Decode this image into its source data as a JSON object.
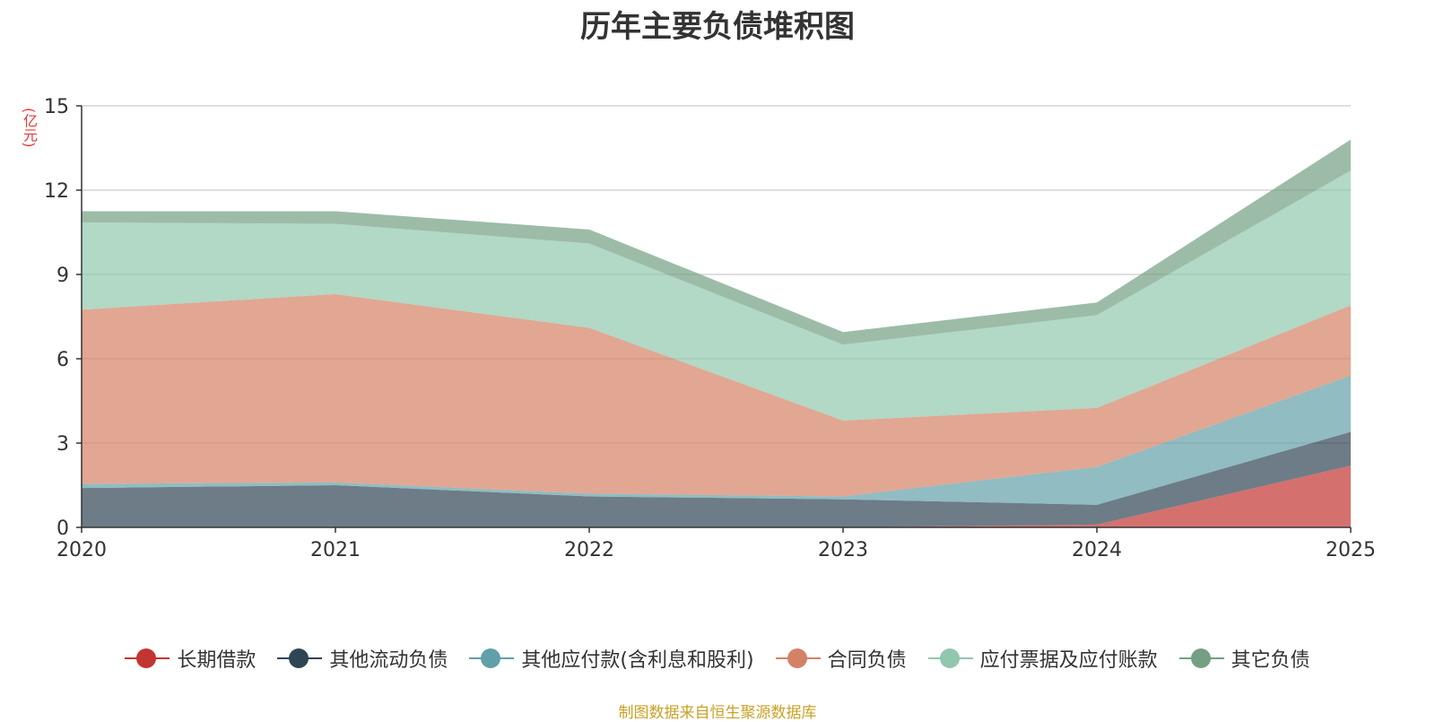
{
  "chart_data": {
    "type": "area",
    "stacked": true,
    "title": "历年主要负债堆积图",
    "unit_label": "(亿元)",
    "categories": [
      "2020",
      "2021",
      "2022",
      "2023",
      "2024",
      "2025"
    ],
    "ylim": [
      0,
      15
    ],
    "yticks": [
      0,
      3,
      6,
      9,
      12,
      15
    ],
    "grid": true,
    "legend_position": "bottom",
    "series": [
      {
        "name": "长期借款",
        "color": "#c23531",
        "values": [
          0,
          0,
          0,
          0,
          0.1,
          2.2
        ]
      },
      {
        "name": "其他流动负债",
        "color": "#2f4554",
        "values": [
          1.4,
          1.5,
          1.1,
          1.0,
          0.7,
          1.2
        ]
      },
      {
        "name": "其他应付款(含利息和股利)",
        "color": "#61a0a8",
        "values": [
          0.15,
          0.1,
          0.1,
          0.1,
          1.35,
          2.0
        ]
      },
      {
        "name": "合同负债",
        "color": "#d48265",
        "values": [
          6.2,
          6.7,
          5.9,
          2.7,
          2.1,
          2.5
        ]
      },
      {
        "name": "应付票据及应付账款",
        "color": "#91c7ae",
        "values": [
          3.1,
          2.5,
          3.0,
          2.7,
          3.3,
          4.8
        ]
      },
      {
        "name": "其它负债",
        "color": "#749f83",
        "values": [
          0.4,
          0.45,
          0.5,
          0.45,
          0.45,
          1.1
        ]
      }
    ],
    "source": "制图数据来自恒生聚源数据库"
  }
}
